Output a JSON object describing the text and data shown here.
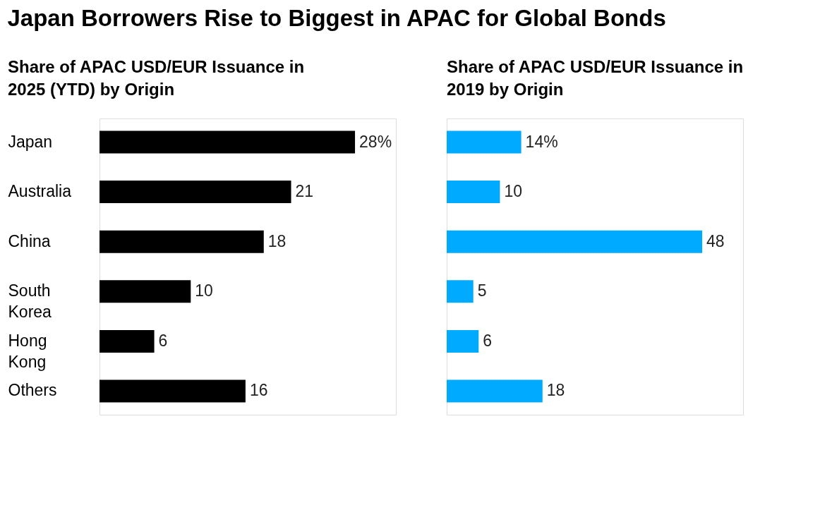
{
  "chart_data": [
    {
      "type": "bar",
      "orientation": "horizontal",
      "title": "Japan Borrowers Rise to Biggest in APAC for Global Bonds",
      "subtitle": "Share of APAC USD/EUR Issuance in 2025 (YTD) by Origin",
      "categories": [
        "Japan",
        "Australia",
        "China",
        "South Korea",
        "Hong Kong",
        "Others"
      ],
      "values": [
        28,
        21,
        18,
        10,
        6,
        16
      ],
      "value_labels": [
        "28%",
        "21",
        "18",
        "10",
        "6",
        "16"
      ],
      "color": "#000000",
      "tick_labels": "y",
      "grid": false
    },
    {
      "type": "bar",
      "orientation": "horizontal",
      "subtitle": "Share of APAC USD/EUR Issuance in 2019 by Origin",
      "categories": [
        null,
        null,
        null,
        null,
        null,
        null
      ],
      "values": [
        14,
        10,
        48,
        5,
        6,
        18
      ],
      "value_labels": [
        "14%",
        "10",
        "48",
        "5",
        "6",
        "18"
      ],
      "color": "#00aaff",
      "tick_labels": false,
      "grid": false
    }
  ]
}
